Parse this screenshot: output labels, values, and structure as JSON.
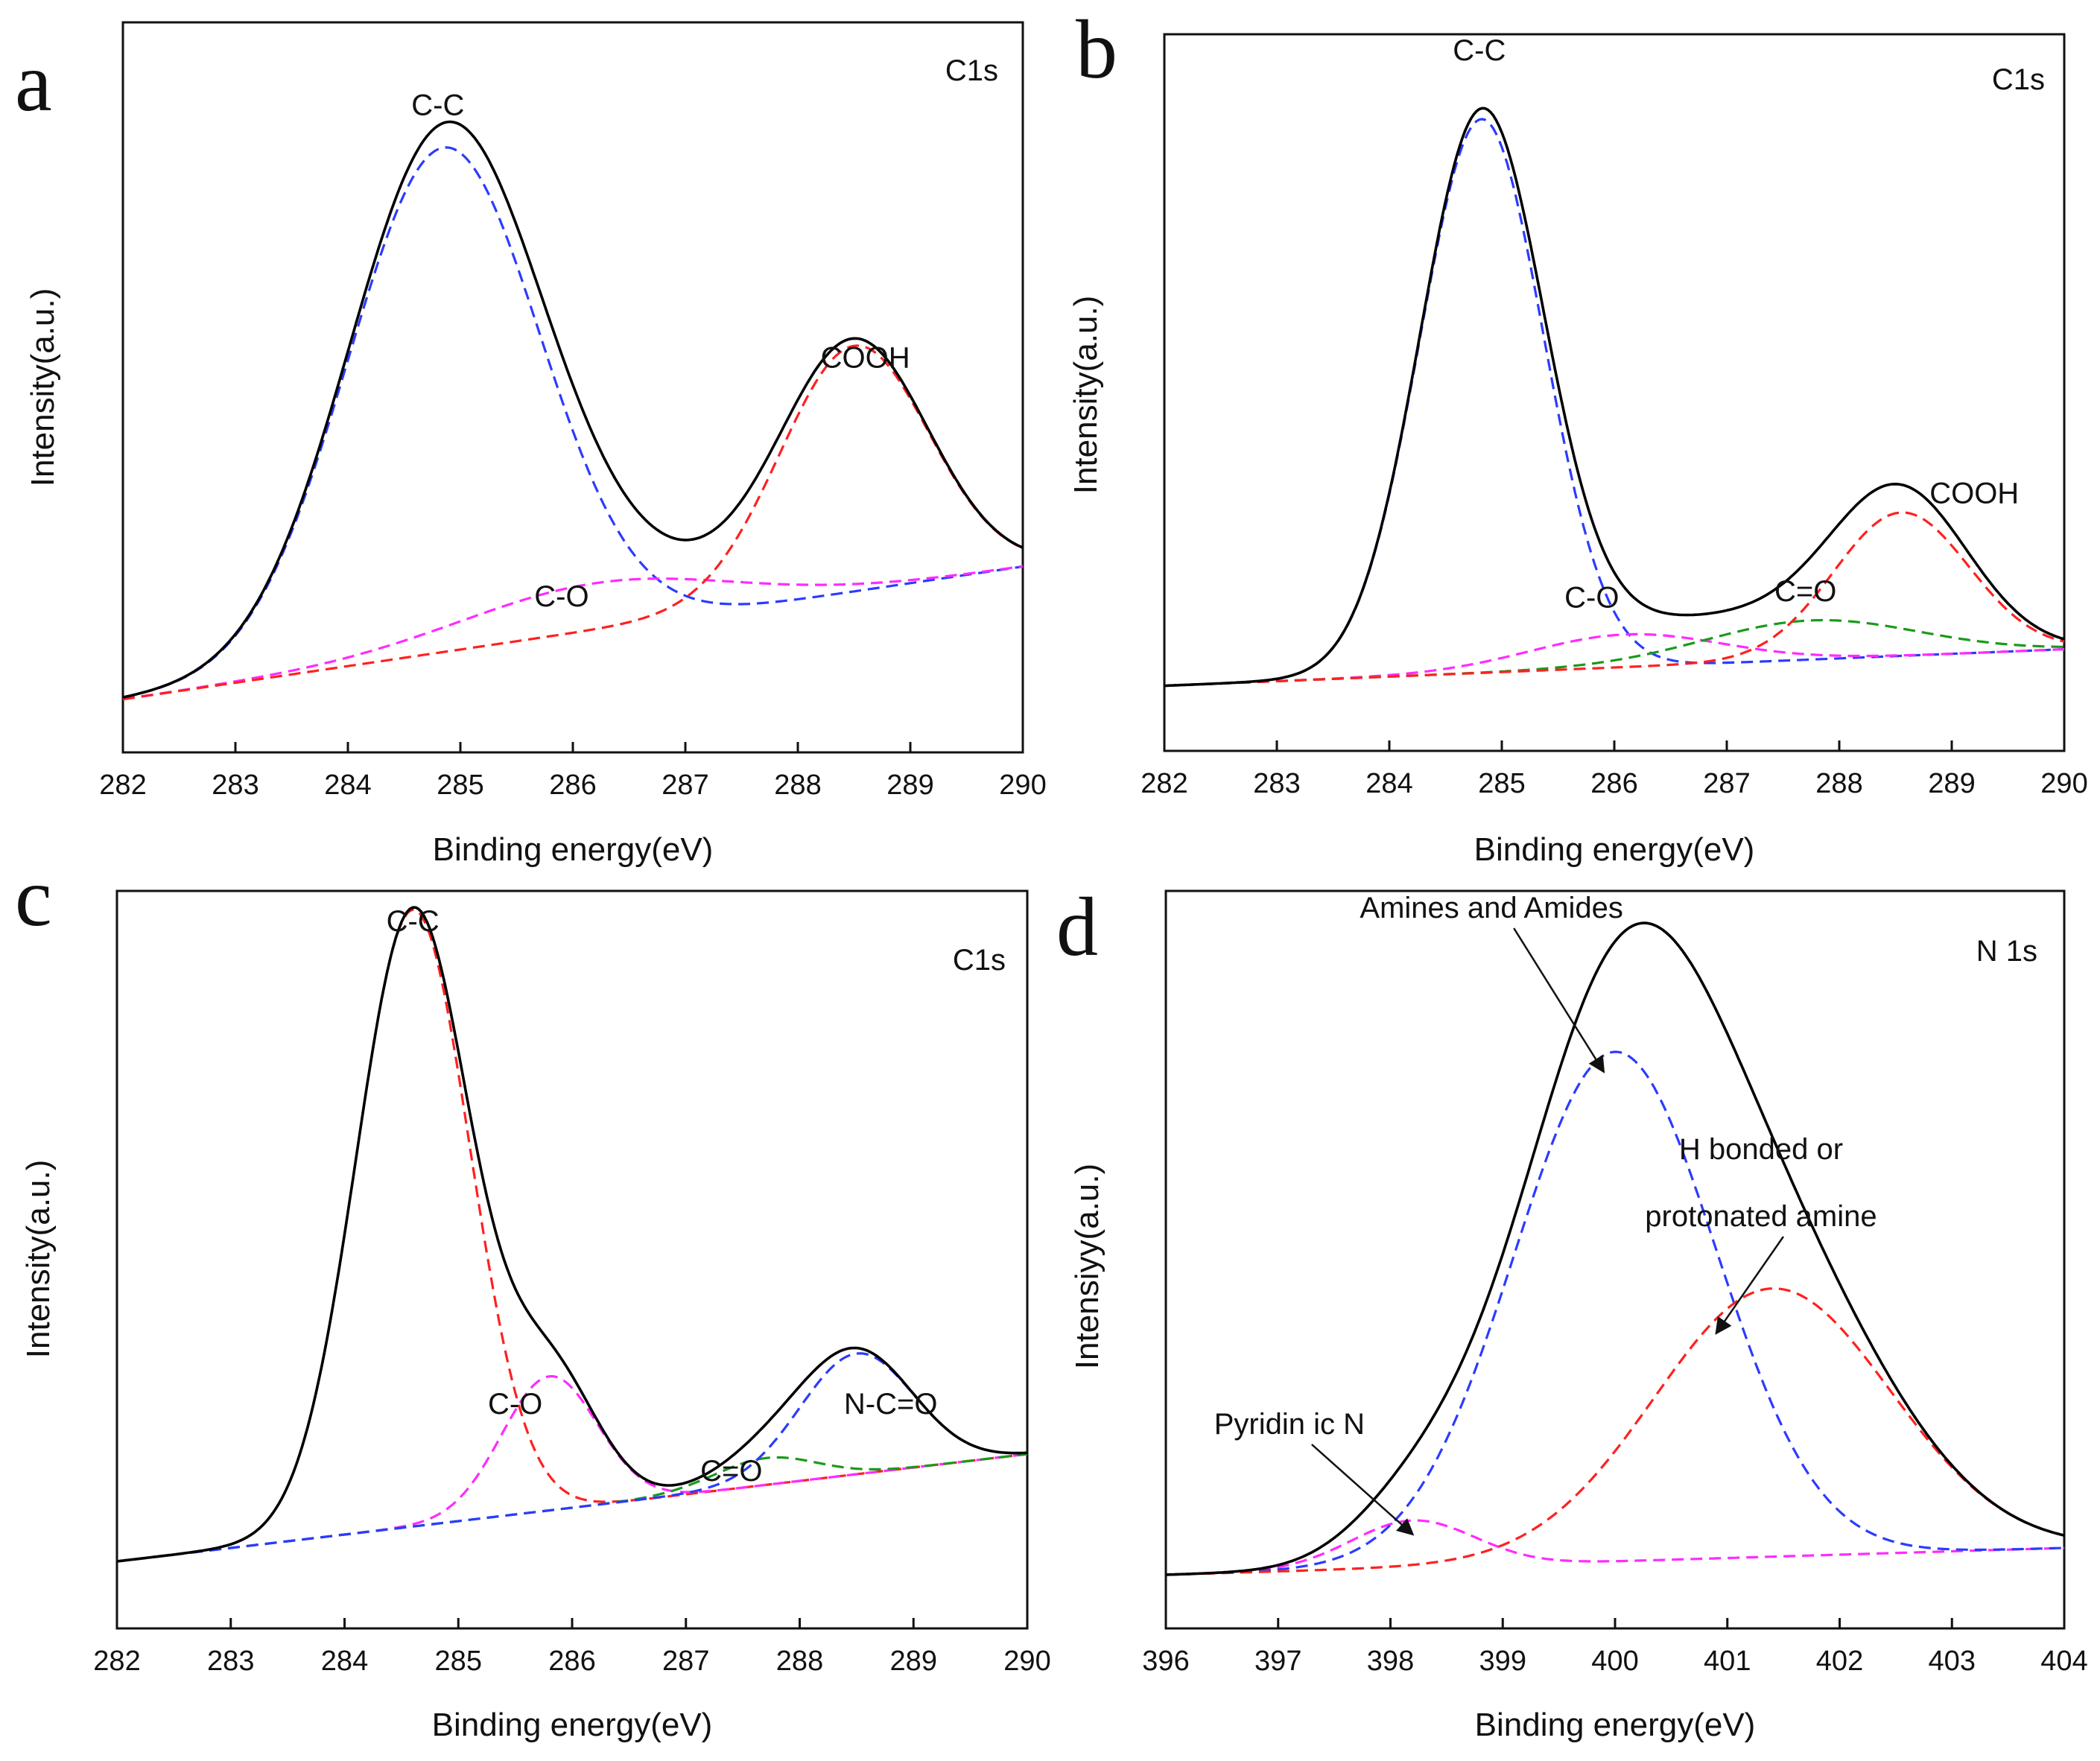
{
  "chart_data": [
    {
      "type": "line",
      "panel": "a",
      "title": "C1s",
      "xlabel": "Binding energy(eV)",
      "ylabel": "Intensity(a.u.)",
      "xlim": [
        282,
        290
      ],
      "ylim": [
        0,
        1.1
      ],
      "xticks": [
        282,
        283,
        284,
        285,
        286,
        287,
        288,
        289,
        290
      ],
      "baseline": 0.08,
      "baseline_slope": 0.025,
      "total": {
        "color": "#000000"
      },
      "components": [
        {
          "name": "C-C",
          "color": "#2b3bff",
          "center": 284.85,
          "amp": 0.76,
          "sigma": 0.85
        },
        {
          "name": "C-O",
          "color": "#ff2bff",
          "center": 286.2,
          "amp": 0.07,
          "sigma": 1.2
        },
        {
          "name": "COOH",
          "color": "#ff2020",
          "center": 288.5,
          "amp": 0.37,
          "sigma": 0.66
        }
      ],
      "annotations": [
        {
          "text": "C-C",
          "x": 284.8,
          "y": 0.96
        },
        {
          "text": "C-O",
          "x": 285.9,
          "y": 0.22
        },
        {
          "text": "COOH",
          "x": 288.6,
          "y": 0.58
        }
      ]
    },
    {
      "type": "line",
      "panel": "b",
      "title": "C1s",
      "xlabel": "Binding energy(eV)",
      "ylabel": "Intensity(a.u.)",
      "xlim": [
        282,
        290
      ],
      "ylim": [
        0,
        1.1
      ],
      "xticks": [
        282,
        283,
        284,
        285,
        286,
        287,
        288,
        289,
        290
      ],
      "baseline": 0.1,
      "baseline_slope": 0.007,
      "total": {
        "color": "#000000"
      },
      "components": [
        {
          "name": "C-C",
          "color": "#2b3bff",
          "center": 284.82,
          "amp": 0.85,
          "sigma": 0.55
        },
        {
          "name": "C-O",
          "color": "#ff2bff",
          "center": 286.1,
          "amp": 0.05,
          "sigma": 0.85
        },
        {
          "name": "C=O",
          "color": "#1a9a1a",
          "center": 287.75,
          "amp": 0.06,
          "sigma": 0.95
        },
        {
          "name": "COOH",
          "color": "#ff2020",
          "center": 288.55,
          "amp": 0.22,
          "sigma": 0.6
        }
      ],
      "annotations": [
        {
          "text": "C-C",
          "x": 284.8,
          "y": 1.06
        },
        {
          "text": "C-O",
          "x": 285.8,
          "y": 0.22
        },
        {
          "text": "C=O",
          "x": 287.7,
          "y": 0.23
        },
        {
          "text": "COOH",
          "x": 289.2,
          "y": 0.38
        }
      ]
    },
    {
      "type": "line",
      "panel": "c",
      "title": "C1s",
      "xlabel": "Binding energy(eV)",
      "ylabel": "Intensity(a.u.)",
      "xlim": [
        282,
        290
      ],
      "ylim": [
        0,
        1.1
      ],
      "xticks": [
        282,
        283,
        284,
        285,
        286,
        287,
        288,
        289,
        290
      ],
      "baseline": 0.1,
      "baseline_slope": 0.02,
      "total": {
        "color": "#000000"
      },
      "components": [
        {
          "name": "C-C",
          "color": "#ff2020",
          "center": 284.6,
          "amp": 0.92,
          "sigma": 0.5
        },
        {
          "name": "C-O",
          "color": "#ff2bff",
          "center": 285.8,
          "amp": 0.2,
          "sigma": 0.42
        },
        {
          "name": "C=O",
          "color": "#1a9a1a",
          "center": 287.7,
          "amp": 0.04,
          "sigma": 0.45
        },
        {
          "name": "N-C=O",
          "color": "#2b3bff",
          "center": 288.5,
          "amp": 0.18,
          "sigma": 0.5
        }
      ],
      "annotations": [
        {
          "text": "C-C",
          "x": 284.6,
          "y": 1.04
        },
        {
          "text": "C-O",
          "x": 285.5,
          "y": 0.32
        },
        {
          "text": "C=O",
          "x": 287.4,
          "y": 0.22
        },
        {
          "text": "N-C=O",
          "x": 288.8,
          "y": 0.32
        }
      ]
    },
    {
      "type": "line",
      "panel": "d",
      "title": "N 1s",
      "xlabel": "Binding energy(eV)",
      "ylabel": "Intensiyy(a.u.)",
      "xlim": [
        396,
        404
      ],
      "ylim": [
        0,
        1.1
      ],
      "xticks": [
        396,
        397,
        398,
        399,
        400,
        401,
        402,
        403,
        404
      ],
      "baseline": 0.08,
      "baseline_slope": 0.005,
      "total": {
        "color": "#000000"
      },
      "components": [
        {
          "name": "Pyridin ic N",
          "color": "#ff2bff",
          "center": 398.2,
          "amp": 0.07,
          "sigma": 0.55
        },
        {
          "name": "Amines and Amides",
          "color": "#2b3bff",
          "center": 400.0,
          "amp": 0.76,
          "sigma": 0.9
        },
        {
          "name": "H bonded or protonated amine",
          "color": "#ff2020",
          "center": 401.4,
          "amp": 0.4,
          "sigma": 1.05
        }
      ],
      "annotations": [
        {
          "text": "Amines and Amides",
          "x": 398.9,
          "y": 1.06,
          "arrow_to": [
            399.9,
            0.83
          ]
        },
        {
          "text": "H bonded or",
          "x": 401.3,
          "y": 0.7
        },
        {
          "text": "protonated amine",
          "x": 401.3,
          "y": 0.6,
          "arrow_to": [
            400.9,
            0.44
          ]
        },
        {
          "text": "Pyridin ic N",
          "x": 397.1,
          "y": 0.29,
          "arrow_to": [
            398.2,
            0.14
          ]
        }
      ]
    }
  ],
  "panel_letters": [
    "a",
    "b",
    "c",
    "d"
  ]
}
